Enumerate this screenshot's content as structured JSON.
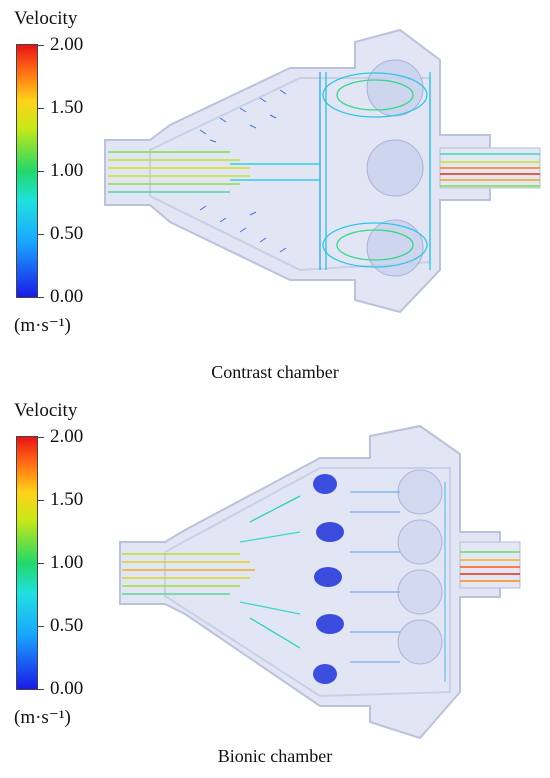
{
  "panels": [
    {
      "legend_title": "Velocity",
      "ticks": [
        "2.00",
        "1.50",
        "1.00",
        "0.50",
        "0.00"
      ],
      "unit": "(m·s⁻¹)",
      "caption": "Contrast chamber"
    },
    {
      "legend_title": "Velocity",
      "ticks": [
        "2.00",
        "1.50",
        "1.00",
        "0.50",
        "0.00"
      ],
      "unit": "(m·s⁻¹)",
      "caption": "Bionic chamber"
    }
  ],
  "colors": {
    "high": "#e81414",
    "mid_high": "#ffd21a",
    "mid": "#22d86a",
    "mid_low": "#20e0e0",
    "low": "#1a1ae6",
    "chamber_fill": "#dfe4f3",
    "chamber_edge": "#b4bcd8"
  }
}
